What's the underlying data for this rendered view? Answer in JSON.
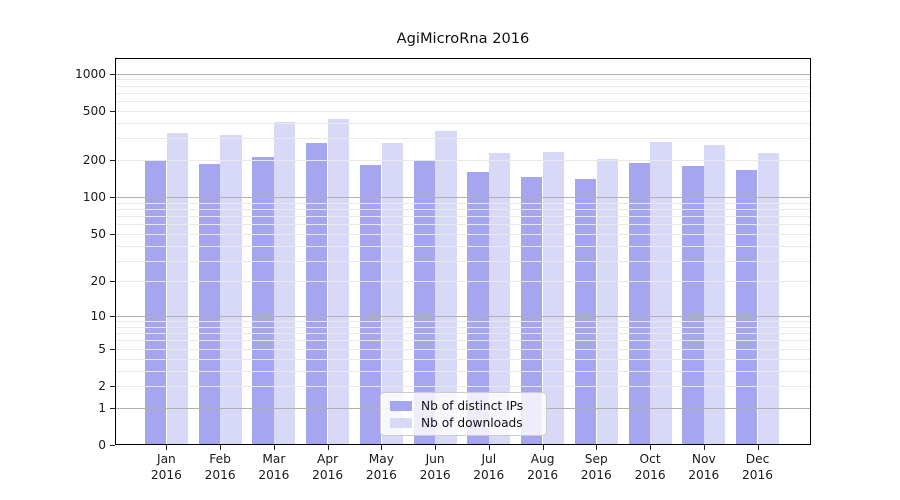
{
  "chart_data": {
    "type": "bar",
    "title": "AgiMicroRna 2016",
    "categories": [
      "Jan 2016",
      "Feb 2016",
      "Mar 2016",
      "Apr 2016",
      "May 2016",
      "Jun 2016",
      "Jul 2016",
      "Aug 2016",
      "Sep 2016",
      "Oct 2016",
      "Nov 2016",
      "Dec 2016"
    ],
    "series": [
      {
        "name": "Nb of distinct IPs",
        "color": "#a6a6f0",
        "values": [
          199,
          185,
          211,
          274,
          183,
          197,
          161,
          147,
          140,
          190,
          179,
          166
        ]
      },
      {
        "name": "Nb of downloads",
        "color": "#d8d8f7",
        "values": [
          334,
          318,
          405,
          430,
          276,
          345,
          227,
          231,
          203,
          281,
          267,
          227
        ]
      }
    ],
    "y_axis": {
      "scale": "log10(value+1)",
      "tick_labels": [
        0,
        1,
        2,
        5,
        10,
        20,
        50,
        100,
        200,
        500,
        1000
      ],
      "major_gridlines": [
        1,
        10,
        100,
        1000
      ],
      "minor_gridlines": [
        2,
        3,
        4,
        5,
        6,
        7,
        8,
        9,
        20,
        30,
        40,
        50,
        60,
        70,
        80,
        90,
        200,
        300,
        400,
        500,
        600,
        700,
        800,
        900
      ],
      "range": [
        0,
        1310
      ]
    },
    "xlabel": "",
    "ylabel": "",
    "grid": true,
    "legend_position": "lower-center"
  },
  "colors": {
    "major_grid": "#b0b0b0",
    "minor_grid": "#e9e9e9",
    "axis": "#000000",
    "text": "#1a1a1a",
    "background": "#ffffff"
  }
}
